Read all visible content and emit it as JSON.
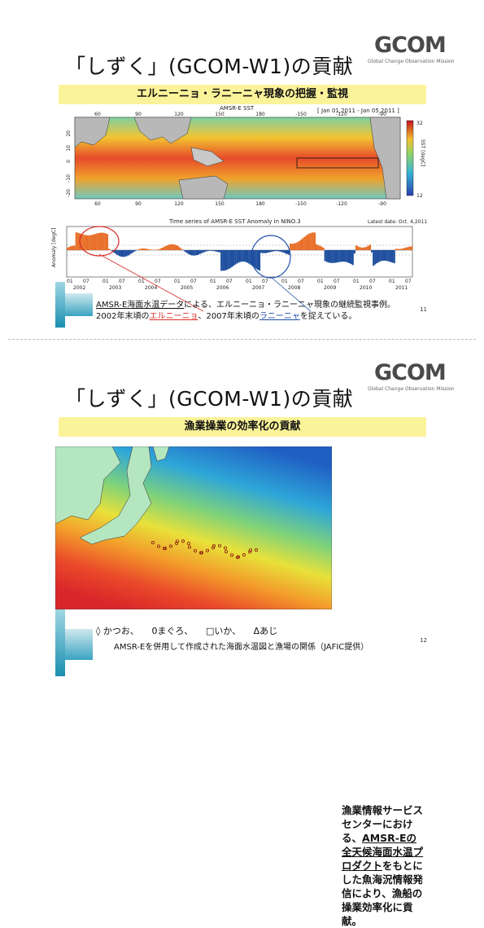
{
  "slide1": {
    "title": "「しずく」(GCOM-W1)の貢献",
    "logo_text": "GCOM",
    "logo_subtitle": "Global Change Observation Mission",
    "banner": "エルニーニョ・ラニーニャ現象の把握・監視",
    "map_title": "AMSR-E SST",
    "date_range": "[ Jan 01,2011 - Jan 05,2011 ]",
    "colorbar_label": "SST [degC]",
    "colorbar_max": "32",
    "colorbar_min": "12",
    "lon_ticks": [
      "60",
      "90",
      "120",
      "150",
      "180",
      "-150",
      "-120",
      "-90"
    ],
    "lat_ticks": [
      "20",
      "10",
      "0",
      "-10",
      "-20"
    ],
    "ts_title": "Time series of AMSR-E SST Anomaly in NINO.3",
    "latest_date": "Latest date: Oct. 4,2011",
    "ts_ylabel": "Anomaly [degC]",
    "ts_months": [
      "01",
      "07"
    ],
    "ts_years": [
      "2002",
      "2003",
      "2004",
      "2005",
      "2006",
      "2007",
      "2008",
      "2009",
      "2010",
      "2011"
    ],
    "caption_line1_pre": "AMSR-E海面水温データ",
    "caption_line1_post": "による、エルニーニョ・ラニーニャ現象の継続監視事例。",
    "caption_line2_pre": "2002年末頃の",
    "caption_line2_red": "エルニーニョ",
    "caption_line2_mid": "、2007年末頃の",
    "caption_line2_blue": "ラニーニャ",
    "caption_line2_post": "を捉えている。",
    "page_number": "11"
  },
  "slide2": {
    "title": "「しずく」(GCOM-W1)の貢献",
    "logo_text": "GCOM",
    "logo_subtitle": "Global Change Observation Mission",
    "banner": "漁業操業の効率化の貢献",
    "side_text_pre": "漁業情報サービスセンターにおける、",
    "side_text_ul": "AMSR-Eの全天候海面水温プロダクト",
    "side_text_post": "をもとにした魚海況情報発信により、漁船の操業効率化に貢献。",
    "legend": [
      "◊ かつお、",
      "0まぐろ、",
      "□いか、",
      "Δあじ"
    ],
    "caption": "AMSR-Eを併用して作成された海面水温図と漁場の関係（JAFIC提供）",
    "page_number": "12"
  },
  "colors": {
    "banner": "#fbf39a",
    "el_nino": "#e8702a",
    "la_nina": "#1f4f9e",
    "accent_blue": "#1b8fb0"
  }
}
